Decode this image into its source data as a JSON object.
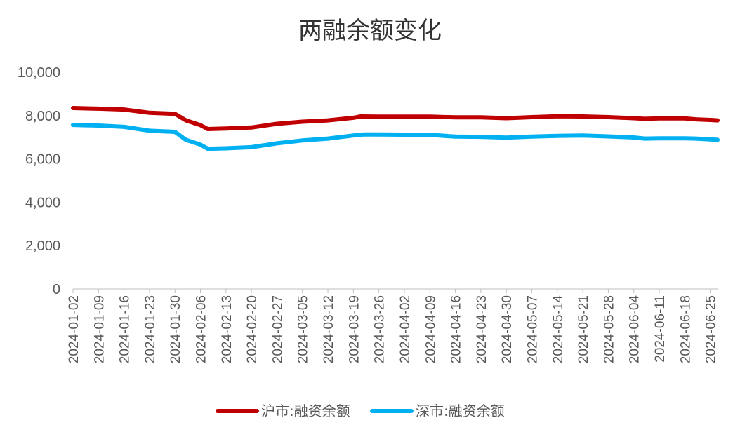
{
  "chart_data": {
    "type": "line",
    "title": "两融余额变化",
    "xlabel": "",
    "ylabel": "",
    "ylim": [
      0,
      10000
    ],
    "yticks": [
      "0",
      "2,000",
      "4,000",
      "6,000",
      "8,000",
      "10,000"
    ],
    "grid": false,
    "legend_position": "bottom",
    "x": [
      "2024-01-02",
      "2024-01-09",
      "2024-01-16",
      "2024-01-23",
      "2024-01-30",
      "2024-02-06",
      "2024-02-13",
      "2024-02-20",
      "2024-02-27",
      "2024-03-05",
      "2024-03-12",
      "2024-03-19",
      "2024-03-26",
      "2024-04-02",
      "2024-04-09",
      "2024-04-16",
      "2024-04-23",
      "2024-04-30",
      "2024-05-07",
      "2024-05-14",
      "2024-05-21",
      "2024-05-28",
      "2024-06-04",
      "2024-06-11",
      "2024-06-18",
      "2024-06-25"
    ],
    "series": [
      {
        "name": "沪市:融资余额",
        "color": "#C00000",
        "points": [
          [
            "2024-01-02",
            8350
          ],
          [
            "2024-01-09",
            8320
          ],
          [
            "2024-01-16",
            8280
          ],
          [
            "2024-01-23",
            8130
          ],
          [
            "2024-01-30",
            8080
          ],
          [
            "2024-02-02",
            7780
          ],
          [
            "2024-02-06",
            7560
          ],
          [
            "2024-02-08",
            7380
          ],
          [
            "2024-02-13",
            7400
          ],
          [
            "2024-02-20",
            7450
          ],
          [
            "2024-02-27",
            7620
          ],
          [
            "2024-03-05",
            7720
          ],
          [
            "2024-03-12",
            7780
          ],
          [
            "2024-03-19",
            7900
          ],
          [
            "2024-03-21",
            7960
          ],
          [
            "2024-03-26",
            7950
          ],
          [
            "2024-04-02",
            7950
          ],
          [
            "2024-04-09",
            7950
          ],
          [
            "2024-04-16",
            7920
          ],
          [
            "2024-04-23",
            7920
          ],
          [
            "2024-04-30",
            7880
          ],
          [
            "2024-05-07",
            7930
          ],
          [
            "2024-05-14",
            7970
          ],
          [
            "2024-05-21",
            7960
          ],
          [
            "2024-05-28",
            7930
          ],
          [
            "2024-06-04",
            7880
          ],
          [
            "2024-06-07",
            7850
          ],
          [
            "2024-06-11",
            7870
          ],
          [
            "2024-06-18",
            7870
          ],
          [
            "2024-06-21",
            7830
          ],
          [
            "2024-06-25",
            7800
          ],
          [
            "2024-06-27",
            7780
          ]
        ]
      },
      {
        "name": "深市:融资余额",
        "color": "#00B0F0",
        "points": [
          [
            "2024-01-02",
            7570
          ],
          [
            "2024-01-09",
            7540
          ],
          [
            "2024-01-16",
            7480
          ],
          [
            "2024-01-23",
            7300
          ],
          [
            "2024-01-30",
            7250
          ],
          [
            "2024-02-02",
            6880
          ],
          [
            "2024-02-06",
            6660
          ],
          [
            "2024-02-08",
            6470
          ],
          [
            "2024-02-13",
            6490
          ],
          [
            "2024-02-20",
            6540
          ],
          [
            "2024-02-27",
            6720
          ],
          [
            "2024-03-05",
            6850
          ],
          [
            "2024-03-12",
            6940
          ],
          [
            "2024-03-19",
            7080
          ],
          [
            "2024-03-22",
            7130
          ],
          [
            "2024-03-26",
            7130
          ],
          [
            "2024-04-02",
            7120
          ],
          [
            "2024-04-09",
            7110
          ],
          [
            "2024-04-16",
            7030
          ],
          [
            "2024-04-23",
            7020
          ],
          [
            "2024-04-30",
            6980
          ],
          [
            "2024-05-07",
            7030
          ],
          [
            "2024-05-14",
            7060
          ],
          [
            "2024-05-21",
            7080
          ],
          [
            "2024-05-28",
            7040
          ],
          [
            "2024-06-04",
            6990
          ],
          [
            "2024-06-07",
            6940
          ],
          [
            "2024-06-11",
            6950
          ],
          [
            "2024-06-18",
            6950
          ],
          [
            "2024-06-21",
            6940
          ],
          [
            "2024-06-25",
            6900
          ],
          [
            "2024-06-27",
            6880
          ]
        ]
      }
    ]
  }
}
